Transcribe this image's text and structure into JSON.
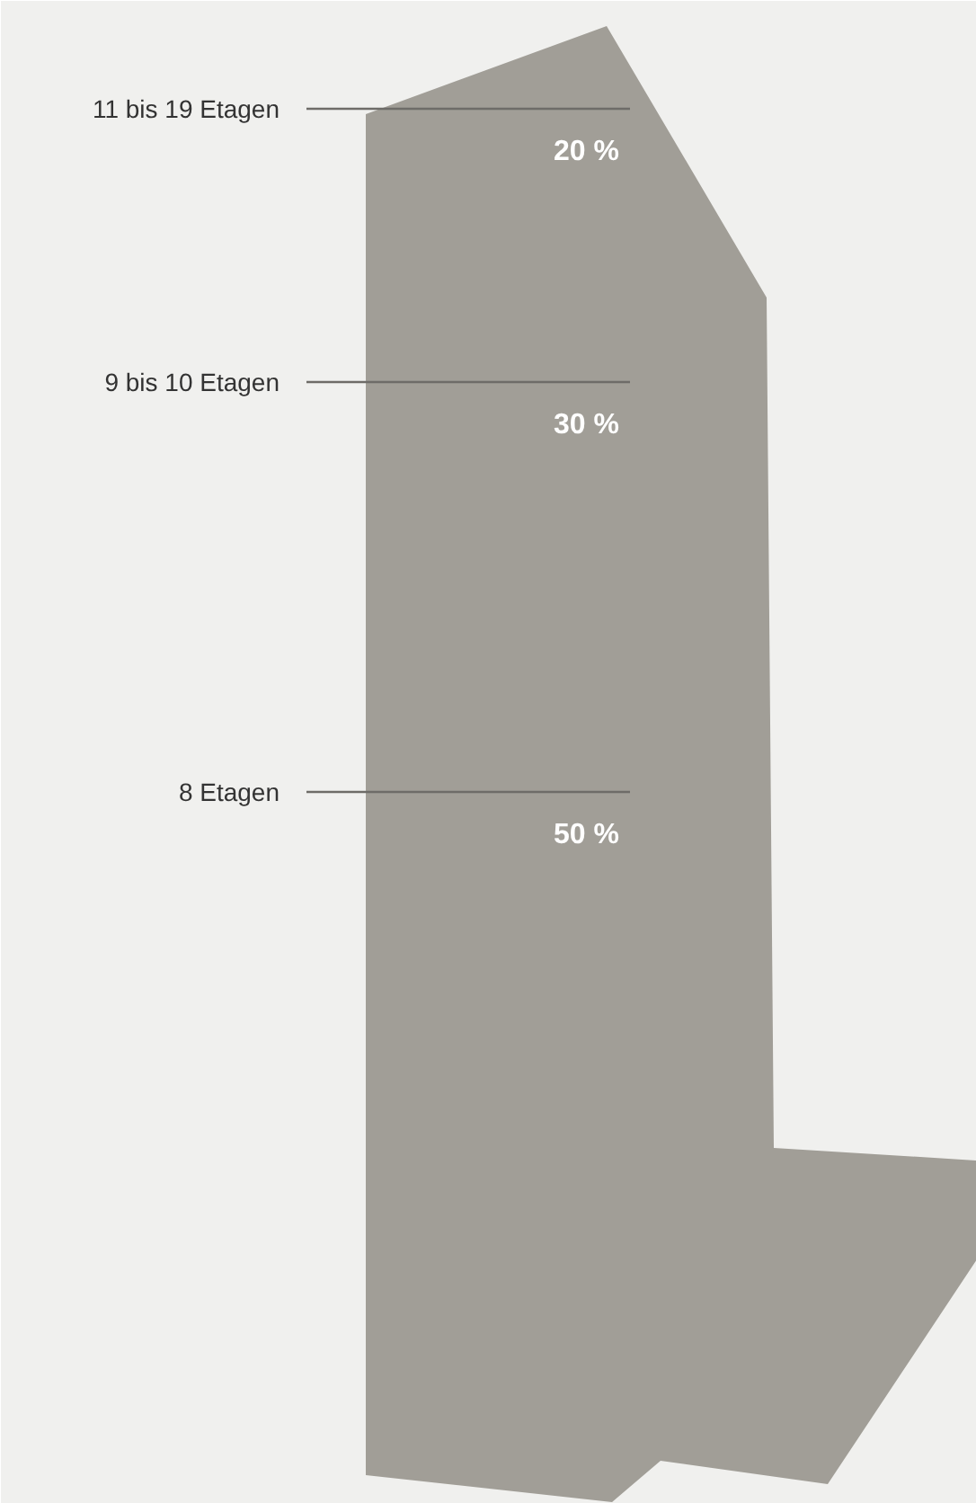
{
  "chart_data": {
    "type": "other",
    "categories": [
      "11 bis 19 Etagen",
      "9 bis 10 Etagen",
      "8 Etagen"
    ],
    "values": [
      20,
      30,
      50
    ],
    "value_labels": [
      "20 %",
      "30 %",
      "50 %"
    ],
    "colors": [
      "#a19e97",
      "#a19e97",
      "#a19e97"
    ]
  }
}
